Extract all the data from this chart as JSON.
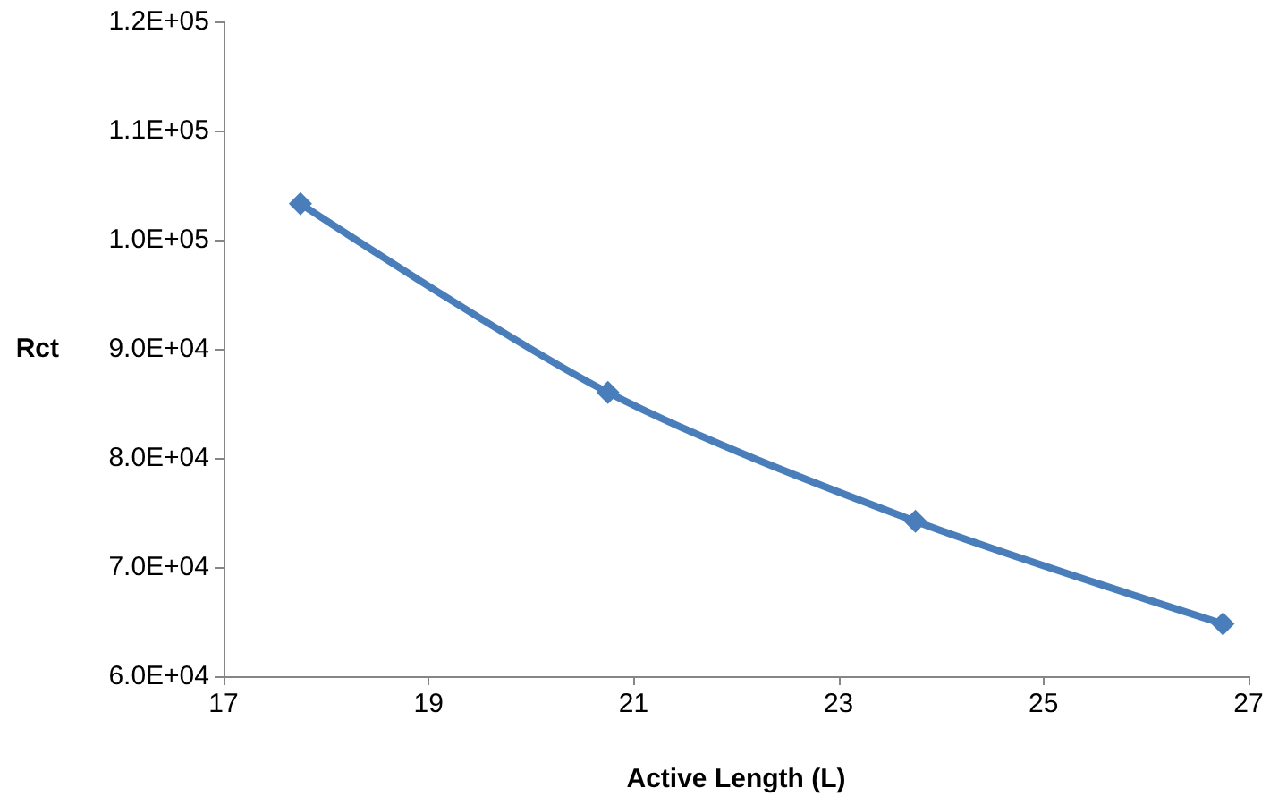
{
  "chart_data": {
    "type": "line",
    "xlabel": "Active Length (L)",
    "ylabel": "Rct",
    "x": [
      17.75,
      20.75,
      23.75,
      26.75
    ],
    "series": [
      {
        "color": "#4a7ebb",
        "values": [
          103300,
          86000,
          74200,
          64800
        ]
      }
    ],
    "xlim": [
      17,
      27
    ],
    "xticks": [
      17,
      19,
      21,
      23,
      25,
      27
    ],
    "ylim": [
      60000,
      120000
    ],
    "yticks": [
      {
        "value": 60000,
        "label": "6.0E+04"
      },
      {
        "value": 70000,
        "label": "7.0E+04"
      },
      {
        "value": 80000,
        "label": "8.0E+04"
      },
      {
        "value": 90000,
        "label": "9.0E+04"
      },
      {
        "value": 100000,
        "label": "1.0E+05"
      },
      {
        "value": 110000,
        "label": "1.1E+05"
      },
      {
        "value": 120000,
        "label": "1.2E+05"
      }
    ],
    "marker": "diamond",
    "line_style": "solid"
  }
}
